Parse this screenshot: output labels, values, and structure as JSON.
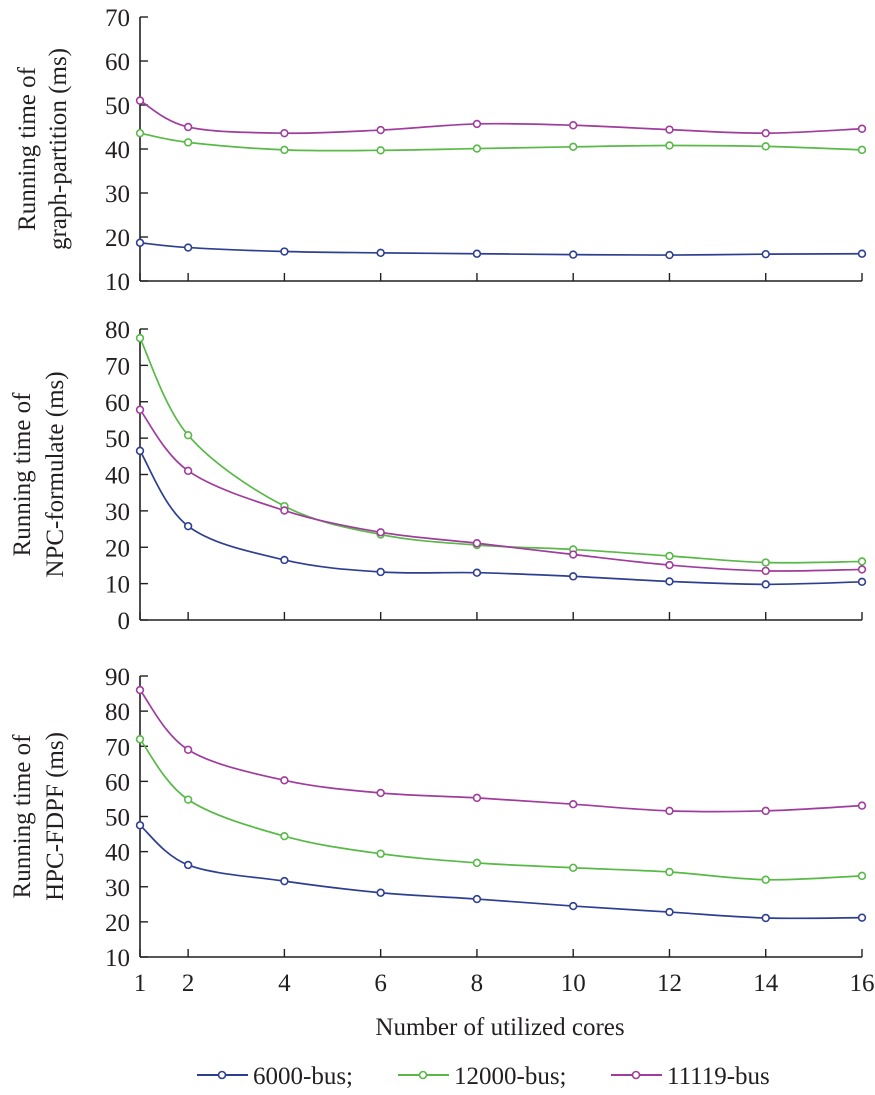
{
  "chart_data": [
    {
      "type": "line",
      "ylabel_lines": [
        "Running time of",
        "graph-partition (ms)"
      ],
      "x": [
        1,
        2,
        4,
        6,
        8,
        10,
        12,
        14,
        16
      ],
      "ylim": [
        10,
        70
      ],
      "yticks": [
        10,
        20,
        30,
        40,
        50,
        60,
        70
      ],
      "show_x_tick_labels": false,
      "series": [
        {
          "name": "6000-bus",
          "color": "#2e3f92",
          "values": [
            18.7,
            17.6,
            16.7,
            16.4,
            16.2,
            16.0,
            15.9,
            16.1,
            16.2
          ]
        },
        {
          "name": "12000-bus",
          "color": "#58b947",
          "values": [
            43.6,
            41.5,
            39.8,
            39.7,
            40.1,
            40.5,
            40.8,
            40.6,
            39.8
          ]
        },
        {
          "name": "11119-bus",
          "color": "#a03c9c",
          "values": [
            51.0,
            45.0,
            43.6,
            44.3,
            45.7,
            45.4,
            44.4,
            43.6,
            44.6
          ]
        }
      ]
    },
    {
      "type": "line",
      "ylabel_lines": [
        "Running time of",
        "NPC-formulate (ms)"
      ],
      "x": [
        1,
        2,
        4,
        6,
        8,
        10,
        12,
        14,
        16
      ],
      "ylim": [
        0,
        80
      ],
      "yticks": [
        0,
        10,
        20,
        30,
        40,
        50,
        60,
        70,
        80
      ],
      "show_x_tick_labels": false,
      "series": [
        {
          "name": "6000-bus",
          "color": "#2e3f92",
          "values": [
            46.5,
            25.8,
            16.5,
            13.2,
            13.0,
            12.0,
            10.6,
            9.8,
            10.5
          ]
        },
        {
          "name": "12000-bus",
          "color": "#58b947",
          "values": [
            77.5,
            50.8,
            31.3,
            23.5,
            20.6,
            19.4,
            17.6,
            15.8,
            16.1
          ]
        },
        {
          "name": "11119-bus",
          "color": "#a03c9c",
          "values": [
            57.8,
            41.0,
            30.1,
            24.1,
            21.1,
            18.0,
            15.1,
            13.5,
            13.9
          ]
        }
      ]
    },
    {
      "type": "line",
      "ylabel_lines": [
        "Running time of",
        "HPC-FDPF (ms)"
      ],
      "x": [
        1,
        2,
        4,
        6,
        8,
        10,
        12,
        14,
        16
      ],
      "xticks": [
        1,
        2,
        4,
        6,
        8,
        10,
        12,
        14,
        16
      ],
      "ylim": [
        10,
        90
      ],
      "yticks": [
        10,
        20,
        30,
        40,
        50,
        60,
        70,
        80,
        90
      ],
      "show_x_tick_labels": true,
      "series": [
        {
          "name": "6000-bus",
          "color": "#2e3f92",
          "values": [
            47.5,
            36.2,
            31.6,
            28.3,
            26.5,
            24.5,
            22.8,
            21.1,
            21.2
          ]
        },
        {
          "name": "12000-bus",
          "color": "#58b947",
          "values": [
            72.0,
            54.8,
            44.4,
            39.4,
            36.8,
            35.4,
            34.2,
            32.0,
            33.1
          ]
        },
        {
          "name": "11119-bus",
          "color": "#a03c9c",
          "values": [
            86.0,
            69.0,
            60.3,
            56.7,
            55.3,
            53.5,
            51.6,
            51.6,
            53.1
          ]
        }
      ]
    }
  ],
  "xlabel": "Number of utilized cores",
  "legend": [
    {
      "label": "6000-bus;",
      "color": "#2e3f92"
    },
    {
      "label": "12000-bus;",
      "color": "#58b947"
    },
    {
      "label": "11119-bus",
      "color": "#a03c9c"
    }
  ]
}
